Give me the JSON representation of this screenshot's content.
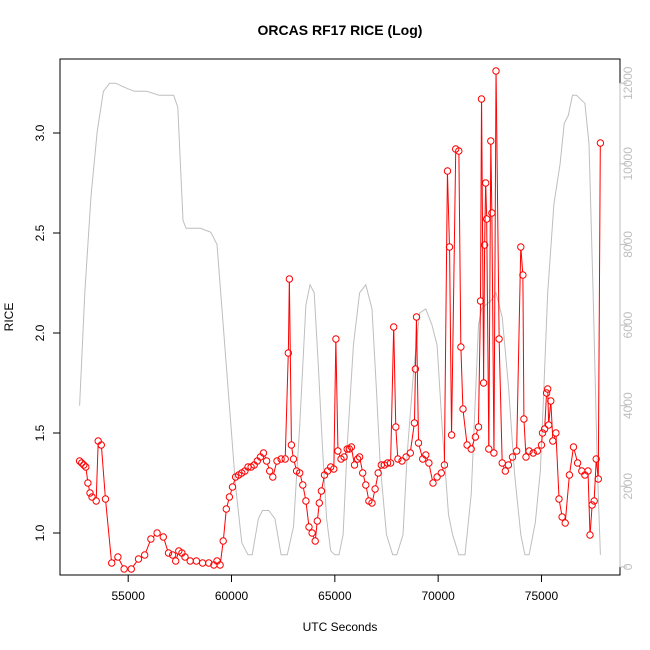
{
  "chart_data": {
    "type": "line",
    "title": "ORCAS RF17 RICE (Log)",
    "xlabel": "UTC Seconds",
    "ylabel": "RICE",
    "xlim": [
      51700,
      78800
    ],
    "ylim": [
      0.79,
      3.37
    ],
    "y2lim": [
      -200,
      12600
    ],
    "x_ticks": [
      55000,
      60000,
      65000,
      70000,
      75000
    ],
    "y_ticks": [
      1.0,
      1.5,
      2.0,
      2.5,
      3.0
    ],
    "y_tick_labels": [
      "1.0",
      "1.5",
      "2.0",
      "2.5",
      "3.0"
    ],
    "y2_ticks": [
      0,
      2000,
      4000,
      6000,
      8000,
      10000,
      12000
    ],
    "grid": false,
    "colors": {
      "rice": "#ff0000",
      "altitude": "#bebebe",
      "frame": "#000000"
    },
    "series": [
      {
        "axis": "left",
        "style": "line+points",
        "x": [
          52650,
          52750,
          52850,
          52950,
          53050,
          53150,
          53250,
          53450,
          53550,
          53700,
          53900,
          54200,
          54500,
          54800,
          55150,
          55500,
          55800,
          56100,
          56400,
          56700,
          56950,
          57150,
          57300,
          57450,
          57600,
          57750,
          58000,
          58300,
          58600,
          58900,
          59150,
          59300,
          59450,
          59600,
          59750,
          59900,
          60050,
          60200,
          60350,
          60500,
          60650,
          60800,
          60950,
          61100,
          61250,
          61400,
          61550,
          61700,
          61850,
          62000,
          62200,
          62400,
          62600,
          62750,
          62800,
          62900,
          63000,
          63150,
          63300,
          63450,
          63600,
          63750,
          63900,
          64050,
          64150,
          64250,
          64350,
          64500,
          64650,
          64800,
          64950,
          65050,
          65150,
          65300,
          65450,
          65600,
          65700,
          65800,
          65950,
          66100,
          66200,
          66350,
          66500,
          66650,
          66800,
          66950,
          67100,
          67250,
          67400,
          67550,
          67700,
          67850,
          67950,
          68050,
          68250,
          68450,
          68650,
          68850,
          68900,
          68950,
          69050,
          69250,
          69400,
          69550,
          69750,
          69950,
          70150,
          70300,
          70450,
          70550,
          70650,
          70850,
          71000,
          71100,
          71200,
          71400,
          71600,
          71800,
          71950,
          72050,
          72100,
          72200,
          72250,
          72300,
          72350,
          72450,
          72550,
          72600,
          72700,
          72800,
          72950,
          73100,
          73250,
          73400,
          73600,
          73800,
          74000,
          74100,
          74150,
          74250,
          74400,
          74600,
          74800,
          75000,
          75050,
          75150,
          75250,
          75300,
          75350,
          75450,
          75550,
          75700,
          75850,
          76000,
          76150,
          76350,
          76550,
          76750,
          76950,
          77100,
          77250,
          77350,
          77450,
          77550,
          77650,
          77750,
          77850
        ],
        "y": [
          1.36,
          1.35,
          1.34,
          1.33,
          1.25,
          1.2,
          1.18,
          1.16,
          1.46,
          1.44,
          1.17,
          0.85,
          0.88,
          0.82,
          0.82,
          0.87,
          0.89,
          0.97,
          1.0,
          0.98,
          0.9,
          0.89,
          0.86,
          0.91,
          0.9,
          0.88,
          0.86,
          0.86,
          0.85,
          0.85,
          0.84,
          0.86,
          0.84,
          0.96,
          1.12,
          1.18,
          1.23,
          1.28,
          1.29,
          1.3,
          1.31,
          1.33,
          1.33,
          1.34,
          1.36,
          1.38,
          1.4,
          1.36,
          1.31,
          1.28,
          1.36,
          1.37,
          1.37,
          1.9,
          2.27,
          1.44,
          1.37,
          1.31,
          1.3,
          1.24,
          1.16,
          1.03,
          1.0,
          0.96,
          1.06,
          1.15,
          1.21,
          1.29,
          1.31,
          1.33,
          1.32,
          1.97,
          1.41,
          1.37,
          1.38,
          1.42,
          1.42,
          1.43,
          1.34,
          1.37,
          1.38,
          1.3,
          1.24,
          1.16,
          1.15,
          1.22,
          1.3,
          1.34,
          1.34,
          1.35,
          1.35,
          2.03,
          1.53,
          1.37,
          1.36,
          1.38,
          1.4,
          1.55,
          1.82,
          2.08,
          1.45,
          1.37,
          1.39,
          1.35,
          1.25,
          1.28,
          1.3,
          1.34,
          2.81,
          2.43,
          1.49,
          2.92,
          2.91,
          1.93,
          1.62,
          1.44,
          1.42,
          1.48,
          1.53,
          2.16,
          3.17,
          1.75,
          2.44,
          2.75,
          2.57,
          1.42,
          2.96,
          2.6,
          1.4,
          3.31,
          1.97,
          1.35,
          1.31,
          1.34,
          1.38,
          1.41,
          2.43,
          2.29,
          1.57,
          1.38,
          1.41,
          1.4,
          1.41,
          1.44,
          1.5,
          1.52,
          1.7,
          1.72,
          1.54,
          1.66,
          1.46,
          1.5,
          1.17,
          1.08,
          1.05,
          1.29,
          1.43,
          1.35,
          1.31,
          1.29,
          1.31,
          0.99,
          1.14,
          1.16,
          1.37,
          1.27,
          2.95
        ]
      },
      {
        "axis": "right",
        "style": "line",
        "x": [
          52650,
          52900,
          53200,
          53500,
          53800,
          54100,
          54400,
          54800,
          55300,
          55900,
          56500,
          57200,
          57400,
          57650,
          57800,
          58000,
          58500,
          59000,
          59300,
          59600,
          59900,
          60200,
          60500,
          60800,
          61000,
          61300,
          61500,
          61800,
          62100,
          62400,
          62700,
          63000,
          63300,
          63600,
          63800,
          64000,
          64200,
          64400,
          64600,
          64800,
          65000,
          65200,
          65400,
          65600,
          65900,
          66200,
          66500,
          66800,
          67000,
          67200,
          67500,
          67800,
          68000,
          68300,
          68500,
          68800,
          69100,
          69400,
          69700,
          69950,
          70200,
          70500,
          70700,
          71000,
          71300,
          71600,
          71800,
          71950,
          72100,
          72300,
          72550,
          72800,
          73100,
          73400,
          73700,
          74000,
          74200,
          74400,
          74700,
          74950,
          75100,
          75300,
          75600,
          75900,
          76100,
          76300,
          76500,
          76700,
          76900,
          77100,
          77300,
          77500,
          77700,
          77850
        ],
        "y": [
          4000,
          6800,
          9200,
          10800,
          11800,
          12000,
          12000,
          11900,
          11800,
          11800,
          11700,
          11700,
          11400,
          8600,
          8400,
          8400,
          8400,
          8300,
          8000,
          6000,
          4000,
          2000,
          600,
          300,
          300,
          1200,
          1400,
          1400,
          1200,
          300,
          300,
          1000,
          3500,
          6500,
          7000,
          6800,
          5000,
          3000,
          1200,
          400,
          300,
          300,
          800,
          3000,
          5500,
          6800,
          7000,
          6400,
          4500,
          2500,
          800,
          300,
          300,
          800,
          2800,
          4800,
          6300,
          6400,
          6000,
          5500,
          3400,
          1300,
          800,
          300,
          300,
          1800,
          4200,
          6000,
          6400,
          6500,
          6600,
          6800,
          6200,
          4500,
          2300,
          800,
          300,
          300,
          1100,
          2400,
          4200,
          6800,
          9000,
          10000,
          11000,
          11200,
          11700,
          11700,
          11600,
          11500,
          10500,
          6800,
          2500,
          300
        ]
      }
    ]
  }
}
